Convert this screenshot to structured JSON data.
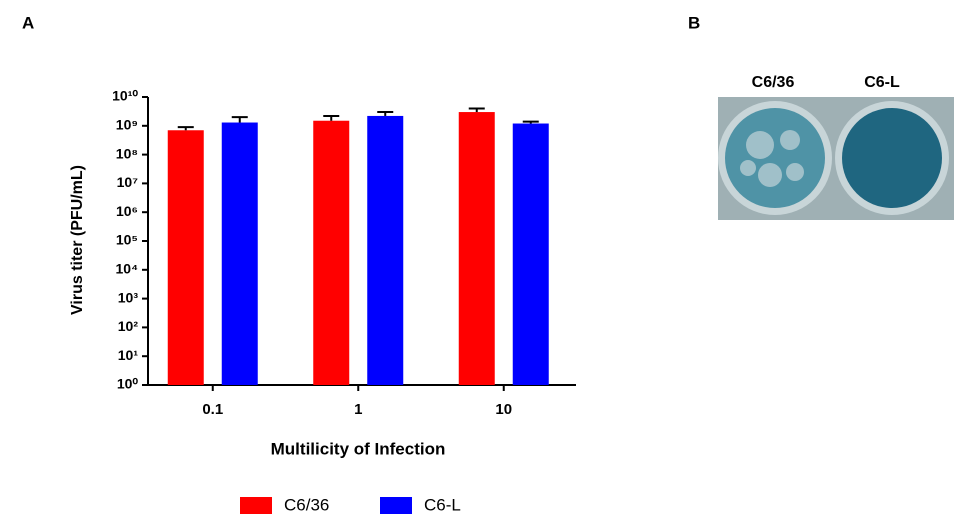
{
  "chart_data": {
    "type": "bar",
    "panel_labels": [
      "A",
      "B"
    ],
    "categories": [
      "0.1",
      "1",
      "10"
    ],
    "xlabel": "Multilicity of Infection",
    "ylabel": "Virus titer (PFU/mL)",
    "log_scale": true,
    "ylim": [
      1,
      10000000000
    ],
    "yticks": [
      {
        "value": 1,
        "label": "10⁰"
      },
      {
        "value": 10,
        "label": "10¹"
      },
      {
        "value": 100,
        "label": "10²"
      },
      {
        "value": 1000,
        "label": "10³"
      },
      {
        "value": 10000,
        "label": "10⁴"
      },
      {
        "value": 100000,
        "label": "10⁵"
      },
      {
        "value": 1000000,
        "label": "10⁶"
      },
      {
        "value": 10000000,
        "label": "10⁷"
      },
      {
        "value": 100000000,
        "label": "10⁸"
      },
      {
        "value": 1000000000,
        "label": "10⁹"
      },
      {
        "value": 10000000000,
        "label": "10¹⁰"
      }
    ],
    "series": [
      {
        "name": "C6/36",
        "color": "#ff0000",
        "values": [
          700000000,
          1500000000,
          3000000000
        ],
        "errors": [
          200000000,
          700000000,
          1000000000
        ]
      },
      {
        "name": "C6-L",
        "color": "#0000ff",
        "values": [
          1300000000,
          2200000000,
          1200000000
        ],
        "errors": [
          700000000,
          800000000,
          200000000
        ]
      }
    ],
    "legend": "bottom",
    "image_labels": [
      "C6/36",
      "C6-L"
    ]
  }
}
